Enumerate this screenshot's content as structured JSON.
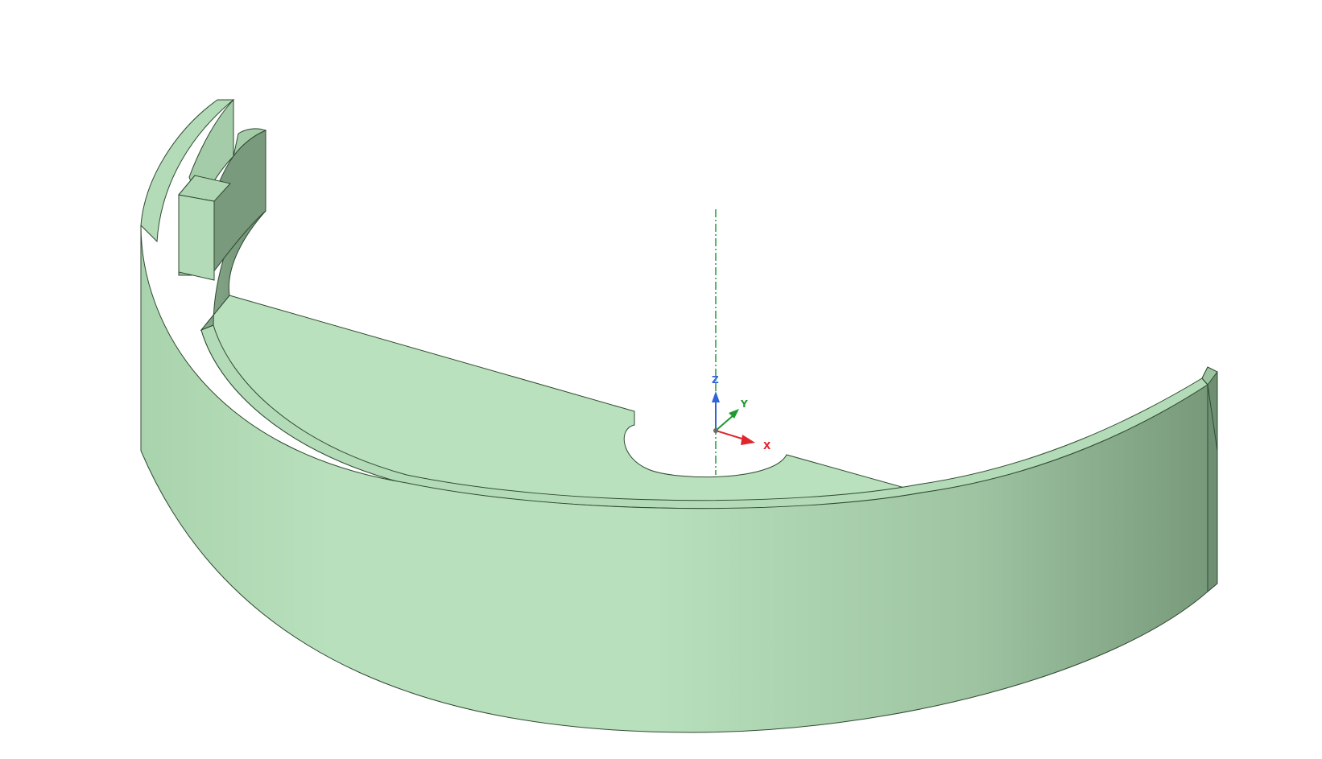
{
  "viewport": {
    "background": "#ffffff"
  },
  "model": {
    "face_light": "#b9e1bd",
    "face_mid": "#a8d0ac",
    "face_dark": "#79977c",
    "edge": "#2f4a31"
  },
  "triad": {
    "x_label": "X",
    "y_label": "Y",
    "z_label": "Z",
    "x_color": "#e0262d",
    "y_color": "#1f9a2f",
    "z_color": "#2e64d8",
    "centerline_color": "#1e9e3a"
  }
}
